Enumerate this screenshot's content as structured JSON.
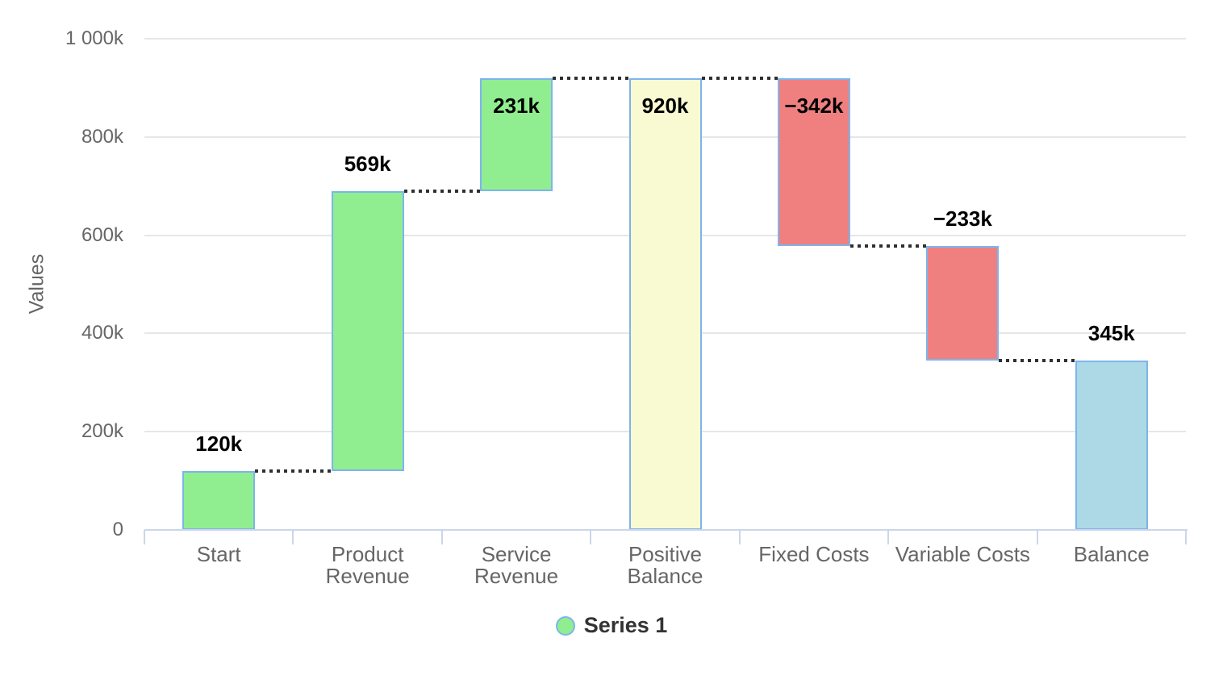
{
  "chart_data": {
    "type": "bar",
    "subtype": "waterfall",
    "ylabel": "Values",
    "ylim": [
      0,
      1000
    ],
    "unit_note": "values in thousands (k)",
    "grid": true,
    "y_ticks": [
      {
        "value": 0,
        "label": "0"
      },
      {
        "value": 200,
        "label": "200k"
      },
      {
        "value": 400,
        "label": "400k"
      },
      {
        "value": 600,
        "label": "600k"
      },
      {
        "value": 800,
        "label": "800k"
      },
      {
        "value": 1000,
        "label": "1 000k"
      }
    ],
    "categories": [
      "Start",
      "Product Revenue",
      "Service Revenue",
      "Positive Balance",
      "Fixed Costs",
      "Variable Costs",
      "Balance"
    ],
    "x_label_lines": [
      [
        "Start"
      ],
      [
        "Product",
        "Revenue"
      ],
      [
        "Service",
        "Revenue"
      ],
      [
        "Positive",
        "Balance"
      ],
      [
        "Fixed Costs"
      ],
      [
        "Variable Costs"
      ],
      [
        "Balance"
      ]
    ],
    "series": [
      {
        "name": "Series 1",
        "points": [
          {
            "category": "Start",
            "value": 120,
            "display": "120k",
            "kind": "up"
          },
          {
            "category": "Product Revenue",
            "value": 569,
            "display": "569k",
            "kind": "up"
          },
          {
            "category": "Service Revenue",
            "value": 231,
            "display": "231k",
            "kind": "up"
          },
          {
            "category": "Positive Balance",
            "value": 920,
            "display": "920k",
            "kind": "intermediate-sum"
          },
          {
            "category": "Fixed Costs",
            "value": -342,
            "display": "−342k",
            "kind": "down"
          },
          {
            "category": "Variable Costs",
            "value": -233,
            "display": "−233k",
            "kind": "down"
          },
          {
            "category": "Balance",
            "value": 345,
            "display": "345k",
            "kind": "final-sum"
          }
        ]
      }
    ],
    "legend": {
      "position": "bottom-center",
      "items": [
        {
          "label": "Series 1",
          "marker_color": "#90ee90",
          "marker_border": "#7cb5ec"
        }
      ]
    },
    "colors": {
      "up": "#90ee90",
      "down": "#f08080",
      "intermediate_sum": "#fafad2",
      "final_sum": "#add8e6",
      "bar_border": "#7cb5ec",
      "connector": "#2f2f2f",
      "grid": "#e6e6e6",
      "axis_line": "#ccd6eb",
      "tick_label": "#666666",
      "data_label": "#000000",
      "legend_text": "#333333"
    }
  }
}
